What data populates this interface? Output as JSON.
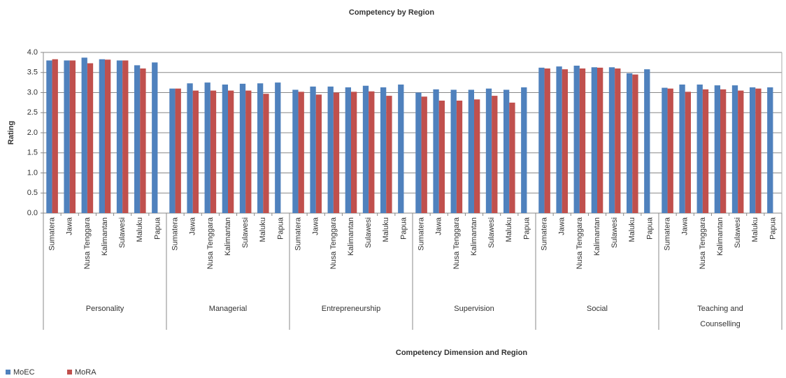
{
  "chart_data": {
    "type": "bar",
    "title": "Competency by Region",
    "x_label": "Competency Dimension and Region",
    "y_label": "Rating",
    "groups": [
      "Personality",
      "Managerial",
      "Entrepreneurship",
      "Supervision",
      "Social",
      "Teaching and Counselling"
    ],
    "categories": [
      "Sumatera",
      "Jawa",
      "Nusa Tenggara",
      "Kalimantan",
      "Sulawesi",
      "Maluku",
      "Papua",
      "Sumatera",
      "Jawa",
      "Nusa Tenggara",
      "Kalimantan",
      "Sulawesi",
      "Maluku",
      "Papua",
      "Sumatera",
      "Jawa",
      "Nusa Tenggara",
      "Kalimantan",
      "Sulawesi",
      "Maluku",
      "Papua",
      "Sumatera",
      "Jawa",
      "Nusa Tenggara",
      "Kalimantan",
      "Sulawesi",
      "Maluku",
      "Papua",
      "Sumatera",
      "Jawa",
      "Nusa Tenggara",
      "Kalimantan",
      "Sulawesi",
      "Maluku",
      "Papua",
      "Sumatera",
      "Jawa",
      "Nusa Tenggara",
      "Kalimantan",
      "Sulawesi",
      "Maluku",
      "Papua"
    ],
    "series": [
      {
        "name": "MoEC",
        "color": "#4f81bd",
        "values": [
          3.8,
          3.8,
          3.87,
          3.83,
          3.8,
          3.68,
          3.75,
          3.1,
          3.23,
          3.25,
          3.2,
          3.22,
          3.23,
          3.25,
          3.07,
          3.15,
          3.15,
          3.13,
          3.17,
          3.13,
          3.2,
          3.0,
          3.08,
          3.07,
          3.07,
          3.1,
          3.07,
          3.13,
          3.62,
          3.65,
          3.67,
          3.63,
          3.63,
          3.48,
          3.58,
          3.12,
          3.2,
          3.2,
          3.18,
          3.18,
          3.13,
          3.13
        ]
      },
      {
        "name": "MoRA",
        "color": "#c0504d",
        "values": [
          3.83,
          3.8,
          3.73,
          3.82,
          3.8,
          3.6,
          null,
          3.1,
          3.05,
          3.05,
          3.05,
          3.05,
          2.97,
          null,
          3.02,
          2.95,
          3.0,
          3.02,
          3.03,
          2.92,
          null,
          2.9,
          2.8,
          2.8,
          2.83,
          2.92,
          2.75,
          null,
          3.6,
          3.58,
          3.6,
          3.62,
          3.6,
          3.45,
          null,
          3.1,
          3.02,
          3.08,
          3.08,
          3.05,
          3.1,
          null
        ]
      }
    ],
    "ylim": [
      0,
      4
    ],
    "yticks": [
      {
        "value": 0,
        "label": "0.0"
      },
      0.5,
      {
        "value": 1,
        "label": "1.0"
      },
      1.5,
      {
        "value": 2,
        "label": "2.0"
      },
      2.5,
      {
        "value": 3,
        "label": "3.0"
      },
      3.5,
      {
        "value": 4,
        "label": "4.0"
      }
    ],
    "grid": true,
    "legend": "bottom-left"
  }
}
